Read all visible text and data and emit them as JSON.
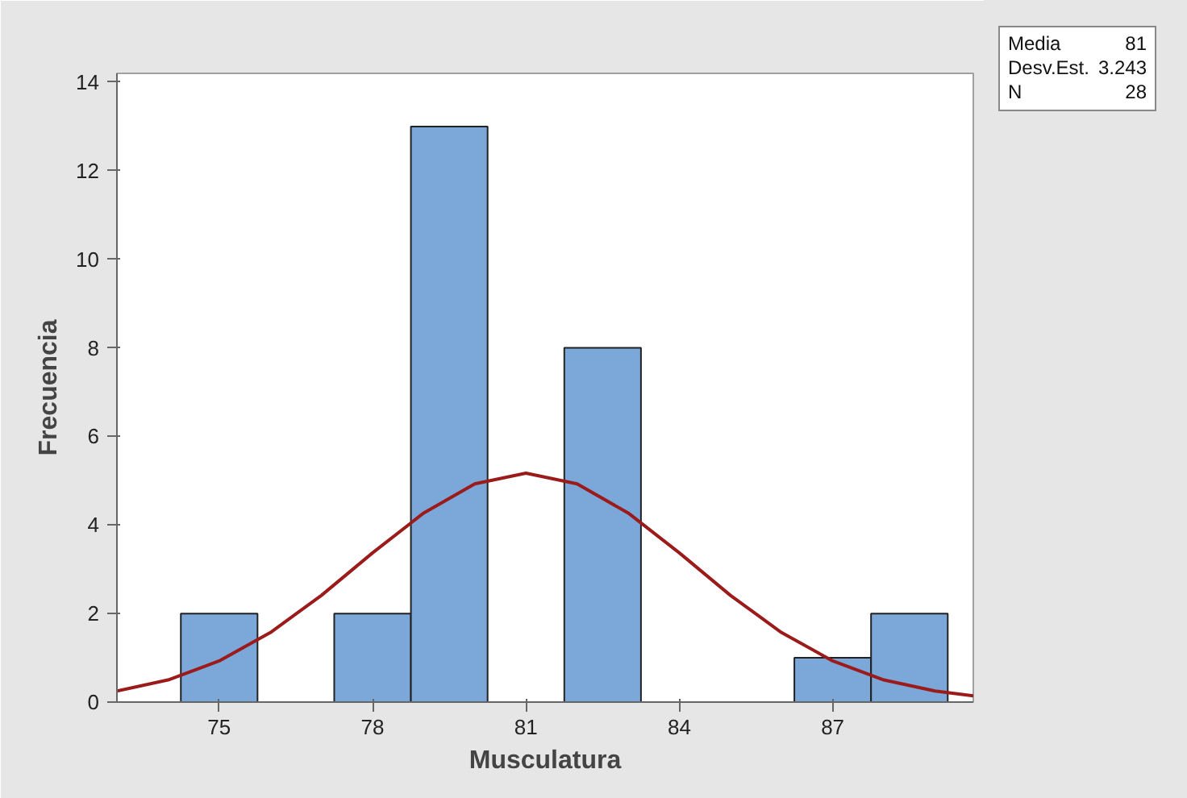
{
  "chart_data": {
    "type": "histogram",
    "xlabel": "Musculatura",
    "ylabel": "Frecuencia",
    "series": [
      {
        "type": "histogram",
        "bins": [
          74.25,
          75.75,
          77.25,
          78.75,
          80.25,
          81.75,
          83.25,
          84.75,
          86.25,
          87.75,
          89.25
        ],
        "values": [
          2,
          0,
          2,
          13,
          0,
          8,
          0,
          0,
          1,
          2
        ],
        "color": "#7ba7d9"
      },
      {
        "type": "line",
        "x": [
          73,
          74,
          75,
          76,
          77,
          78,
          79,
          80,
          81,
          82,
          83,
          84,
          85,
          86,
          87,
          88,
          89,
          89.75
        ],
        "values": [
          0.25,
          0.5,
          0.93,
          1.57,
          2.41,
          3.37,
          4.27,
          4.93,
          5.17,
          4.93,
          4.27,
          3.37,
          2.41,
          1.57,
          0.93,
          0.5,
          0.25,
          0.14
        ],
        "color": "#9b1b1b"
      }
    ],
    "xlim": [
      73,
      89.75
    ],
    "xticks": [
      75,
      78,
      81,
      84,
      87
    ],
    "ylim": [
      0,
      14.2
    ],
    "yticks": [
      0,
      2,
      4,
      6,
      8,
      10,
      12,
      14
    ],
    "grid": false,
    "annotations": [
      "Media 81",
      "Desv.Est. 3.243",
      "N 28"
    ]
  }
}
